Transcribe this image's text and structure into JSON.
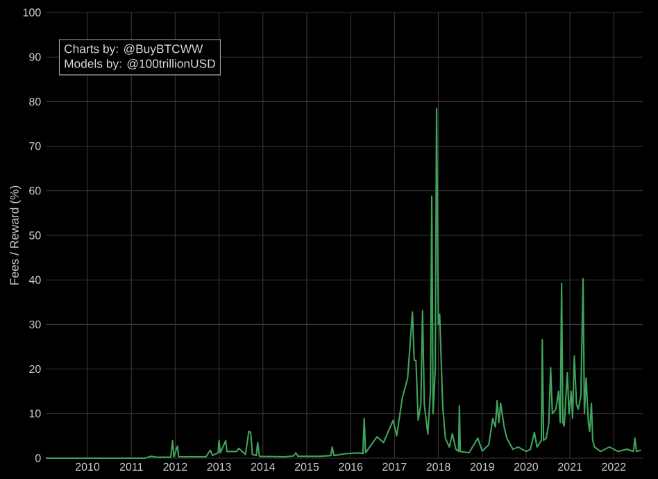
{
  "chart_data": {
    "type": "line",
    "ylabel": "Fees / Reward (%)",
    "annotations": [
      "Charts by: @BuyBTCWW",
      "Models by: @100trillionUSD"
    ],
    "xlim": [
      2009.05,
      2022.66
    ],
    "xticks": [
      2010,
      2011,
      2012,
      2013,
      2014,
      2015,
      2016,
      2017,
      2018,
      2019,
      2020,
      2021,
      2022
    ],
    "ylim": [
      0,
      100
    ],
    "yticks": [
      0,
      10,
      20,
      30,
      40,
      50,
      60,
      70,
      80,
      90,
      100
    ],
    "grid": true,
    "series": [
      {
        "color": "#3fa35b",
        "x": [
          2009.05,
          2011.3,
          2011.45,
          2011.6,
          2011.9,
          2011.94,
          2011.97,
          2012.05,
          2012.08,
          2012.7,
          2012.8,
          2012.85,
          2012.98,
          2013.0,
          2013.03,
          2013.15,
          2013.18,
          2013.4,
          2013.45,
          2013.6,
          2013.68,
          2013.72,
          2013.76,
          2013.85,
          2013.88,
          2013.92,
          2014.5,
          2014.7,
          2014.75,
          2014.8,
          2015.3,
          2015.55,
          2015.58,
          2015.62,
          2015.9,
          2016.2,
          2016.28,
          2016.31,
          2016.34,
          2016.6,
          2016.75,
          2016.97,
          2017.05,
          2017.18,
          2017.3,
          2017.41,
          2017.45,
          2017.49,
          2017.54,
          2017.6,
          2017.64,
          2017.68,
          2017.76,
          2017.82,
          2017.85,
          2017.88,
          2017.93,
          2017.96,
          2018.0,
          2018.03,
          2018.1,
          2018.16,
          2018.25,
          2018.32,
          2018.4,
          2018.46,
          2018.48,
          2018.5,
          2018.7,
          2018.9,
          2019.0,
          2019.15,
          2019.24,
          2019.3,
          2019.34,
          2019.38,
          2019.42,
          2019.5,
          2019.56,
          2019.7,
          2019.82,
          2020.0,
          2020.1,
          2020.19,
          2020.25,
          2020.35,
          2020.37,
          2020.4,
          2020.46,
          2020.52,
          2020.56,
          2020.6,
          2020.68,
          2020.74,
          2020.78,
          2020.81,
          2020.84,
          2020.87,
          2020.94,
          2020.98,
          2021.03,
          2021.06,
          2021.1,
          2021.15,
          2021.19,
          2021.25,
          2021.3,
          2021.33,
          2021.37,
          2021.42,
          2021.45,
          2021.49,
          2021.52,
          2021.56,
          2021.7,
          2021.9,
          2022.1,
          2022.3,
          2022.45,
          2022.48,
          2022.52,
          2022.62
        ],
        "values": [
          0,
          0,
          0.4,
          0.2,
          0.2,
          3.9,
          0.3,
          2.7,
          0.3,
          0.3,
          1.8,
          0.6,
          1.2,
          4.0,
          1.2,
          3.9,
          1.5,
          1.5,
          2.2,
          0.8,
          6.0,
          5.8,
          0.8,
          0.6,
          3.5,
          0.4,
          0.3,
          0.5,
          1.2,
          0.4,
          0.4,
          0.6,
          2.5,
          0.6,
          1.0,
          1.2,
          1.0,
          8.9,
          1.2,
          4.8,
          3.5,
          8.5,
          5,
          13.6,
          18,
          32.8,
          22,
          21.9,
          8.5,
          12,
          33.1,
          12,
          5.4,
          15,
          58.8,
          10,
          20,
          78.5,
          30,
          32.3,
          11.6,
          4.5,
          2.5,
          5.5,
          2,
          1.5,
          11.7,
          1.5,
          1.2,
          4.5,
          1.6,
          3,
          8.9,
          7,
          12.9,
          8,
          12.3,
          7,
          4.5,
          2,
          2.5,
          1.5,
          2,
          5.8,
          2.5,
          4,
          26.6,
          4,
          4.5,
          8,
          20.3,
          10,
          11,
          15,
          8,
          39.2,
          8,
          7.2,
          19.2,
          10,
          15,
          9,
          22.9,
          12,
          11,
          14,
          40.3,
          10,
          18,
          8,
          6,
          12.3,
          4,
          2.5,
          1.5,
          2.5,
          1.5,
          2,
          1.5,
          4.5,
          1.5,
          1.8
        ]
      }
    ]
  }
}
